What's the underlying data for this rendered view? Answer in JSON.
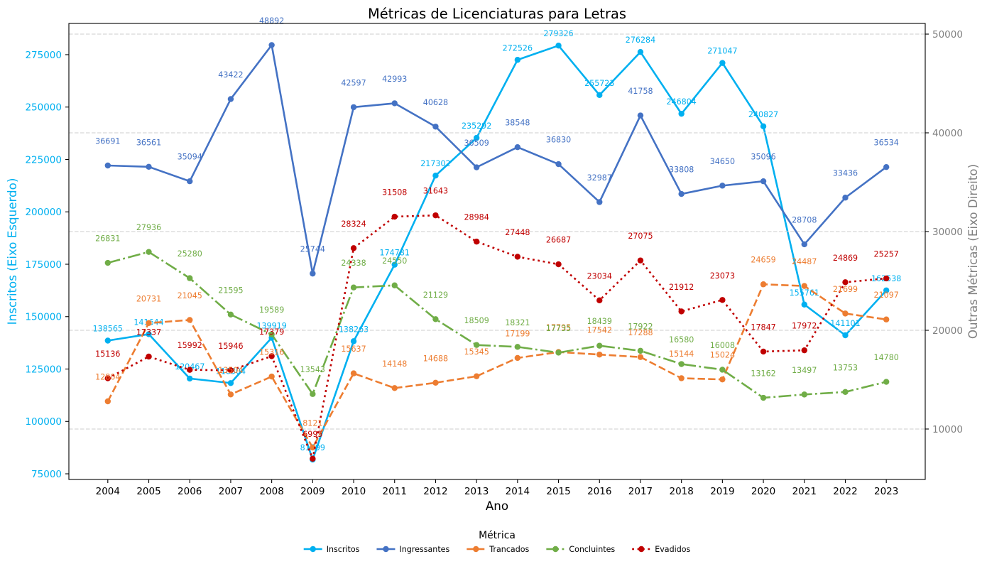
{
  "chart_data": {
    "type": "line",
    "title": "Métricas de Licenciaturas para Letras",
    "xlabel": "Ano",
    "ylabel_left": "Inscritos (Eixo Esquerdo)",
    "ylabel_right": "Outras Métricas (Eixo Direito)",
    "x": [
      2004,
      2005,
      2006,
      2007,
      2008,
      2009,
      2010,
      2011,
      2012,
      2013,
      2014,
      2015,
      2016,
      2017,
      2018,
      2019,
      2020,
      2021,
      2022,
      2023
    ],
    "ylim_left": [
      72300,
      289900
    ],
    "ylim_right": [
      4890,
      51080
    ],
    "yticks_left": [
      75000,
      100000,
      125000,
      150000,
      175000,
      200000,
      225000,
      250000,
      275000
    ],
    "yticks_right": [
      10000,
      20000,
      30000,
      40000,
      50000
    ],
    "axis_colors": {
      "left": "#00b0f0",
      "right": "#808080"
    },
    "grid": {
      "on": true,
      "axis": "y-right",
      "style": "dashed"
    },
    "legend": {
      "title": "Métrica",
      "placement": "bottom-center"
    },
    "data_labels": true,
    "series": [
      {
        "name": "Inscritos",
        "axis": "left",
        "color": "#00b0f0",
        "line_style": "solid",
        "marker": "circle",
        "values": [
          138565,
          141644,
          120467,
          118304,
          139919,
          81799,
          138263,
          174781,
          217302,
          235292,
          272526,
          279326,
          255723,
          276284,
          246804,
          271047,
          240827,
          155761,
          141101,
          162538
        ]
      },
      {
        "name": "Ingressantes",
        "axis": "right",
        "color": "#4472c4",
        "line_style": "solid",
        "marker": "circle",
        "values": [
          36691,
          36561,
          35094,
          43422,
          48892,
          25744,
          42597,
          42993,
          40628,
          36509,
          38548,
          36830,
          32987,
          41758,
          33808,
          34650,
          35096,
          28708,
          33436,
          36534
        ]
      },
      {
        "name": "Trancados",
        "axis": "right",
        "color": "#ed7d31",
        "line_style": "dashed",
        "marker": "circle",
        "values": [
          12804,
          20731,
          21045,
          13504,
          15316,
          8121,
          15637,
          14148,
          14688,
          15345,
          17199,
          17795,
          17542,
          17288,
          15144,
          15024,
          24659,
          24487,
          21699,
          21097
        ]
      },
      {
        "name": "Concluintes",
        "axis": "right",
        "color": "#70ad47",
        "line_style": "dashdot",
        "marker": "circle",
        "values": [
          26831,
          27936,
          25280,
          21595,
          19589,
          13543,
          24338,
          24550,
          21129,
          18509,
          18321,
          17735,
          18439,
          17922,
          16580,
          16008,
          13162,
          13497,
          13753,
          14780
        ]
      },
      {
        "name": "Evadidos",
        "axis": "right",
        "color": "#c00000",
        "line_style": "dotted",
        "marker": "circle",
        "values": [
          15136,
          17337,
          15992,
          15946,
          17379,
          6995,
          28324,
          31508,
          31643,
          28984,
          27448,
          26687,
          23034,
          27075,
          21912,
          23073,
          17847,
          17972,
          24869,
          25257
        ]
      }
    ]
  }
}
